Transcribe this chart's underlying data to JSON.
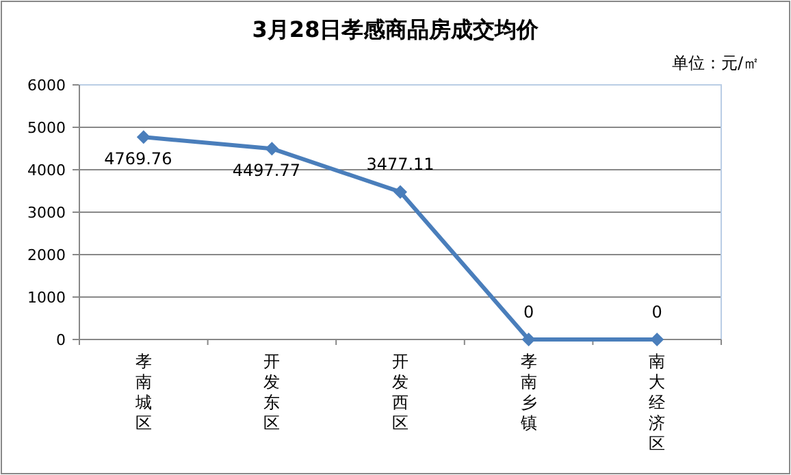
{
  "chart_data": {
    "type": "line",
    "title": "3月28日孝感商品房成交均价",
    "annotations": [
      "单位：元/㎡"
    ],
    "categories": [
      "孝南城区",
      "开发东区",
      "开发西区",
      "孝南乡镇",
      "南大经济区"
    ],
    "series": [
      {
        "color": "#4a7ebb",
        "values": [
          4769.76,
          4497.77,
          3477.11,
          0,
          0
        ]
      }
    ],
    "ylim": [
      0,
      6000
    ],
    "yticks": [
      0,
      1000,
      2000,
      3000,
      4000,
      5000,
      6000
    ],
    "grid": "y",
    "marker": "diamond",
    "line_style": "solid",
    "data_labels": true
  }
}
